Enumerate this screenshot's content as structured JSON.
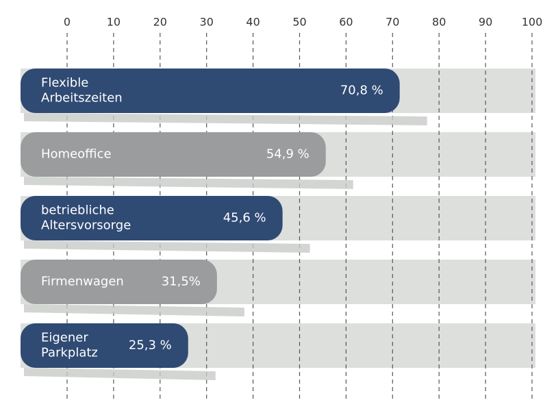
{
  "chart_data": {
    "type": "bar",
    "orientation": "horizontal",
    "categories": [
      "Flexible\nArbeitszeiten",
      "Homeoffice",
      "betriebliche\nAltersvorsorge",
      "Firmenwagen",
      "Eigener\nParkplatz"
    ],
    "values": [
      70.8,
      54.9,
      45.6,
      31.5,
      25.3
    ],
    "value_labels": [
      "70,8 %",
      "54,9 %",
      "45,6 %",
      "31,5%",
      "25,3 %"
    ],
    "colors": [
      "#2f4a73",
      "#9b9c9e",
      "#2f4a73",
      "#9b9c9e",
      "#2f4a73"
    ],
    "track_color": "#dcdfdc",
    "xlim": [
      0,
      100
    ],
    "xticks": [
      0,
      10,
      20,
      30,
      40,
      50,
      60,
      70,
      80,
      90,
      100
    ],
    "grid": true
  }
}
